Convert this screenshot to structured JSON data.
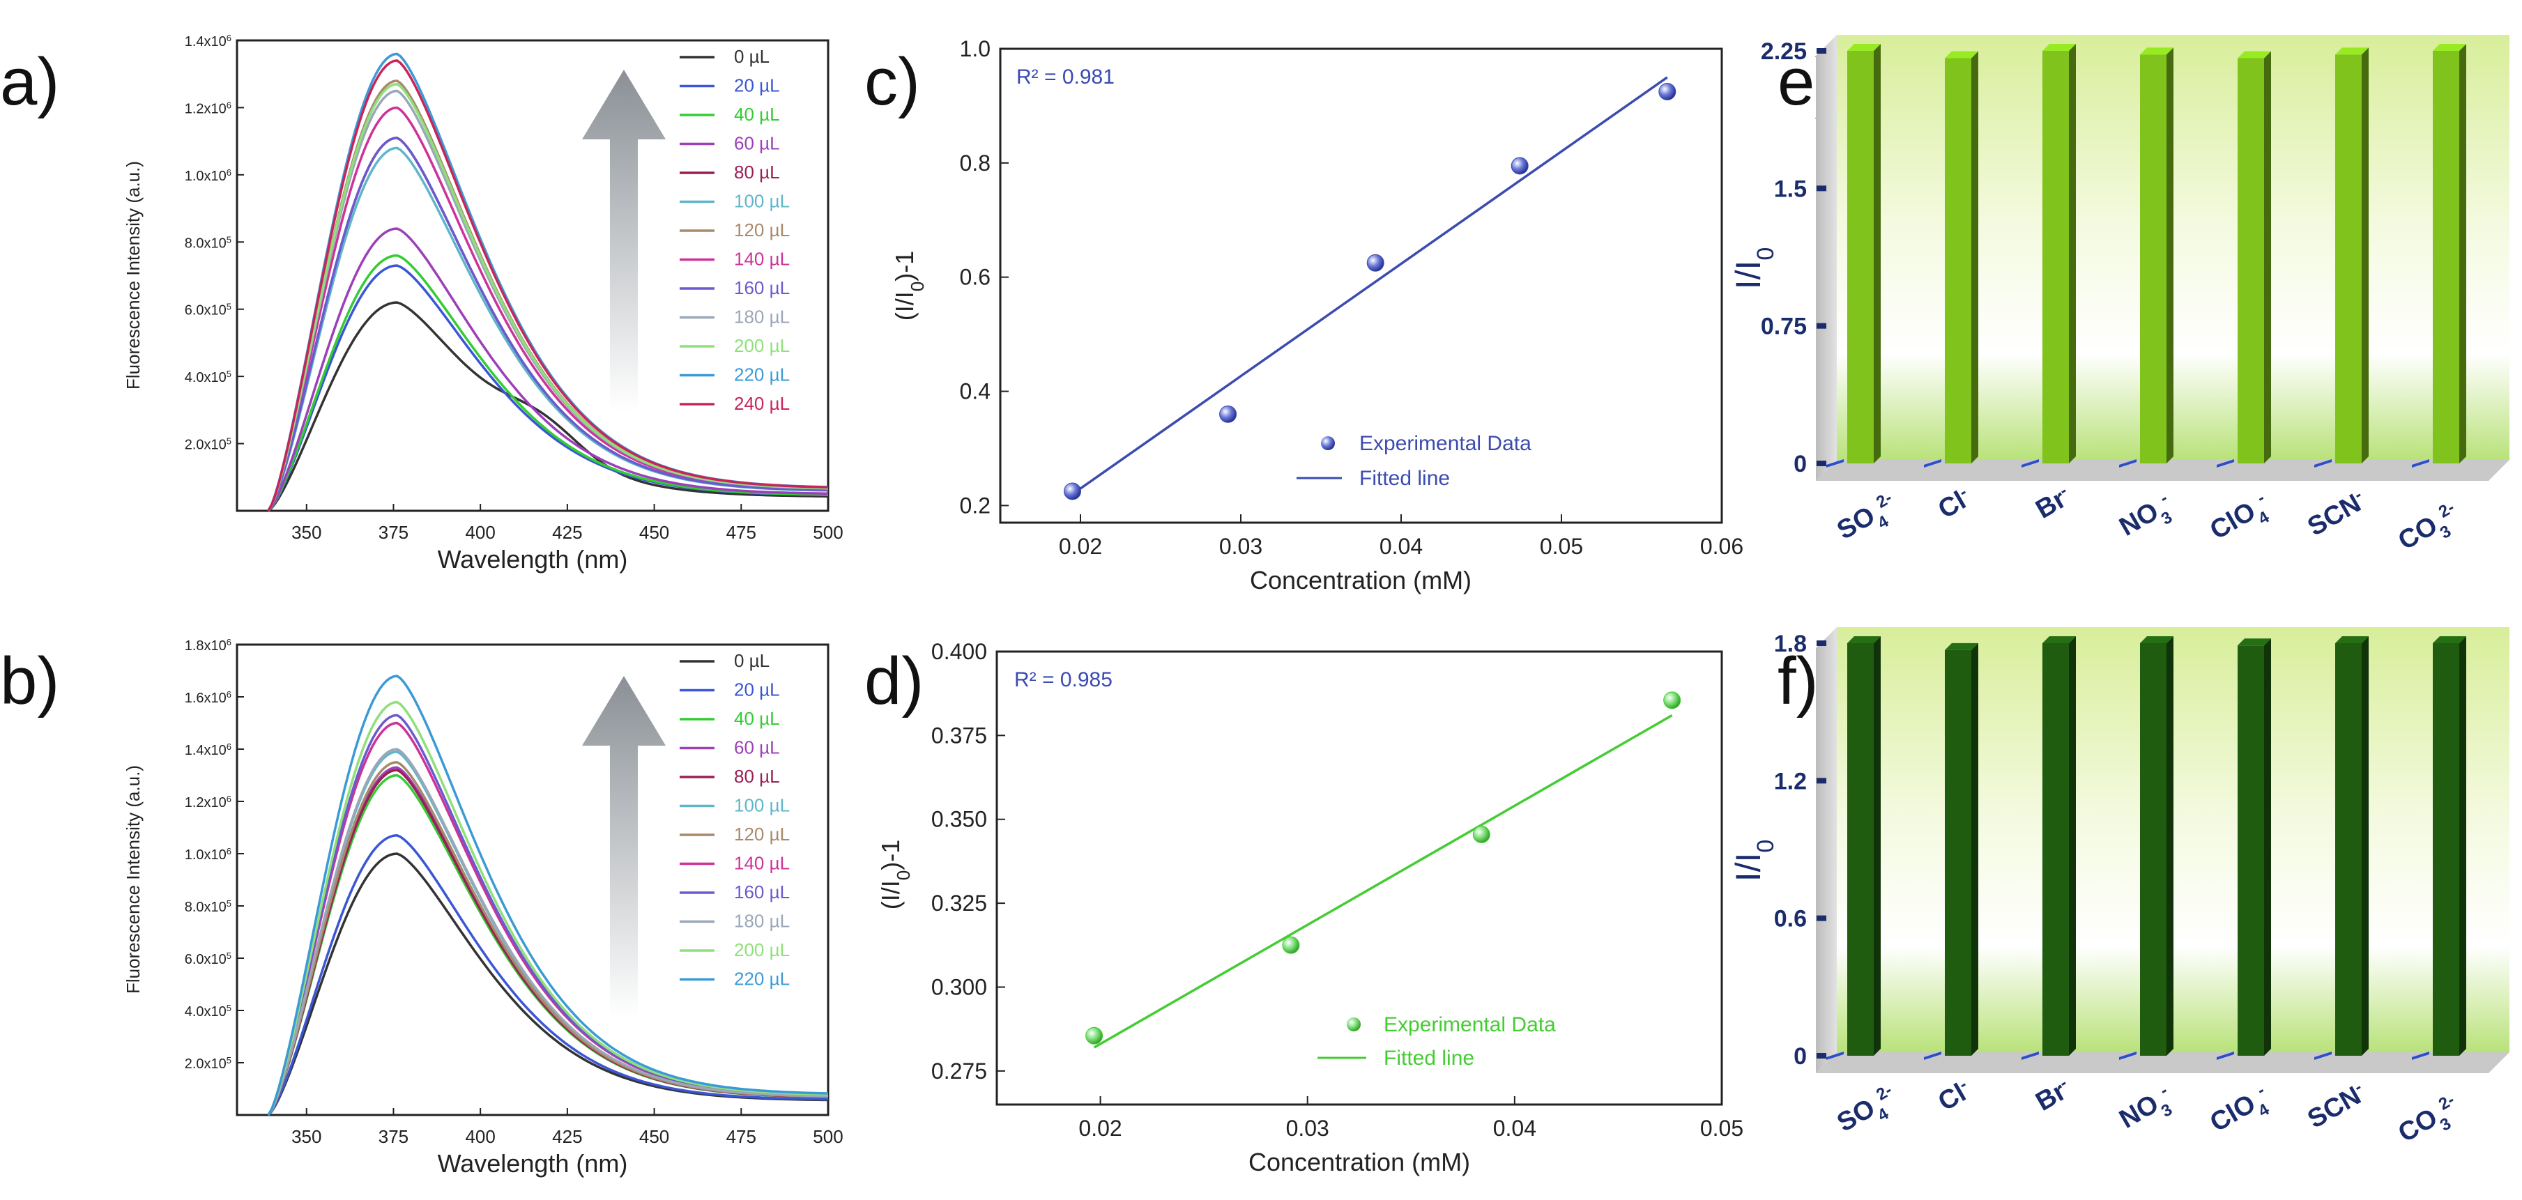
{
  "panels": [
    "a)",
    "b)",
    "c)",
    "d)",
    "e)",
    "f)"
  ],
  "chart_data": [
    {
      "id": "a",
      "type": "line",
      "xlabel": "Wavelength (nm)",
      "ylabel": "Fluorescence Intensity (a.u.)",
      "xlim": [
        330,
        500
      ],
      "ylim": [
        0,
        1400000
      ],
      "xticks": [
        350,
        375,
        400,
        425,
        450,
        475,
        500
      ],
      "yticks": [
        {
          "base": "2.0x10",
          "exp": "5",
          "value": 200000
        },
        {
          "base": "4.0x10",
          "exp": "5",
          "value": 400000
        },
        {
          "base": "6.0x10",
          "exp": "5",
          "value": 600000
        },
        {
          "base": "8.0x10",
          "exp": "5",
          "value": 800000
        },
        {
          "base": "1.0x10",
          "exp": "6",
          "value": 1000000
        },
        {
          "base": "1.2x10",
          "exp": "6",
          "value": 1200000
        },
        {
          "base": "1.4x10",
          "exp": "6",
          "value": 1400000
        }
      ],
      "series": [
        {
          "name": "0 µL",
          "color": "#333333",
          "peak": 620000,
          "shoulder": 1
        },
        {
          "name": "20 µL",
          "color": "#3a56d6",
          "peak": 730000
        },
        {
          "name": "40 µL",
          "color": "#33cc33",
          "peak": 760000
        },
        {
          "name": "60 µL",
          "color": "#9c3fb8",
          "peak": 840000
        },
        {
          "name": "80 µL",
          "color": "#9a1f55",
          "peak": 1110000
        },
        {
          "name": "100 µL",
          "color": "#5fb6c9",
          "peak": 1080000
        },
        {
          "name": "120 µL",
          "color": "#a8896a",
          "peak": 1280000
        },
        {
          "name": "140 µL",
          "color": "#cc3399",
          "peak": 1200000
        },
        {
          "name": "160 µL",
          "color": "#6a5acd",
          "peak": 1110000
        },
        {
          "name": "180 µL",
          "color": "#9aa7b8",
          "peak": 1250000
        },
        {
          "name": "200 µL",
          "color": "#8fe07a",
          "peak": 1270000
        },
        {
          "name": "220 µL",
          "color": "#3b9ad6",
          "peak": 1360000
        },
        {
          "name": "240 µL",
          "color": "#c8245a",
          "peak": 1340000
        }
      ]
    },
    {
      "id": "b",
      "type": "line",
      "xlabel": "Wavelength (nm)",
      "ylabel": "Fluorescence Intensity (a.u.)",
      "xlim": [
        330,
        500
      ],
      "ylim": [
        0,
        1800000
      ],
      "xticks": [
        350,
        375,
        400,
        425,
        450,
        475,
        500
      ],
      "yticks": [
        {
          "base": "2.0x10",
          "exp": "5",
          "value": 200000
        },
        {
          "base": "4.0x10",
          "exp": "5",
          "value": 400000
        },
        {
          "base": "6.0x10",
          "exp": "5",
          "value": 600000
        },
        {
          "base": "8.0x10",
          "exp": "5",
          "value": 800000
        },
        {
          "base": "1.0x10",
          "exp": "6",
          "value": 1000000
        },
        {
          "base": "1.2x10",
          "exp": "6",
          "value": 1200000
        },
        {
          "base": "1.4x10",
          "exp": "6",
          "value": 1400000
        },
        {
          "base": "1.6x10",
          "exp": "6",
          "value": 1600000
        },
        {
          "base": "1.8x10",
          "exp": "6",
          "value": 1800000
        }
      ],
      "series": [
        {
          "name": "0 µL",
          "color": "#333333",
          "peak": 1000000
        },
        {
          "name": "20 µL",
          "color": "#3a56d6",
          "peak": 1070000
        },
        {
          "name": "40 µL",
          "color": "#33cc33",
          "peak": 1300000
        },
        {
          "name": "60 µL",
          "color": "#9c3fb8",
          "peak": 1330000
        },
        {
          "name": "80 µL",
          "color": "#9a1f55",
          "peak": 1320000
        },
        {
          "name": "100 µL",
          "color": "#5fb6c9",
          "peak": 1390000
        },
        {
          "name": "120 µL",
          "color": "#a8896a",
          "peak": 1350000
        },
        {
          "name": "140 µL",
          "color": "#cc3399",
          "peak": 1500000
        },
        {
          "name": "160 µL",
          "color": "#6a5acd",
          "peak": 1530000
        },
        {
          "name": "180 µL",
          "color": "#9aa7b8",
          "peak": 1400000
        },
        {
          "name": "200 µL",
          "color": "#8fe07a",
          "peak": 1580000
        },
        {
          "name": "220 µL",
          "color": "#3b9ad6",
          "peak": 1680000
        }
      ]
    },
    {
      "id": "c",
      "type": "scatter",
      "xlabel": "Concentration (mM)",
      "ylabel": "(I/I0)-1",
      "xlim": [
        0.015,
        0.06
      ],
      "ylim": [
        0.17,
        1.0
      ],
      "xticks": [
        "0.02",
        "0.03",
        "0.04",
        "0.05",
        "0.06"
      ],
      "yticks": [
        "0.2",
        "0.4",
        "0.6",
        "0.8",
        "1.0"
      ],
      "annotation": "R² = 0.981",
      "color": "#3b4bb0",
      "points": [
        {
          "x": 0.0195,
          "y": 0.225
        },
        {
          "x": 0.0292,
          "y": 0.36
        },
        {
          "x": 0.0384,
          "y": 0.625
        },
        {
          "x": 0.0474,
          "y": 0.795
        },
        {
          "x": 0.0566,
          "y": 0.925
        }
      ],
      "fit": [
        {
          "x": 0.0195,
          "y": 0.22
        },
        {
          "x": 0.0566,
          "y": 0.95
        }
      ],
      "legend": {
        "points": "Experimental Data",
        "line": "Fitted line"
      }
    },
    {
      "id": "d",
      "type": "scatter",
      "xlabel": "Concentration (mM)",
      "ylabel": "(I/I0)-1",
      "xlim": [
        0.015,
        0.05
      ],
      "ylim": [
        0.265,
        0.4
      ],
      "xticks": [
        "0.02",
        "0.03",
        "0.04",
        "0.05"
      ],
      "yticks": [
        "0.275",
        "0.300",
        "0.325",
        "0.350",
        "0.375",
        "0.400"
      ],
      "annotation": "R² = 0.985",
      "color": "#44cc33",
      "points": [
        {
          "x": 0.0197,
          "y": 0.2855
        },
        {
          "x": 0.0292,
          "y": 0.3125
        },
        {
          "x": 0.0384,
          "y": 0.3455
        },
        {
          "x": 0.0476,
          "y": 0.3855
        }
      ],
      "fit": [
        {
          "x": 0.0197,
          "y": 0.282
        },
        {
          "x": 0.0476,
          "y": 0.381
        }
      ],
      "legend": {
        "points": "Experimental Data",
        "line": "Fitted line"
      }
    },
    {
      "id": "e",
      "type": "bar",
      "ylabel": "I/I0",
      "ylim": [
        0,
        2.25
      ],
      "yticks": [
        "0",
        "0.75",
        "1.5",
        "2.25"
      ],
      "categories": [
        "SO4 2-",
        "Cl-",
        "Br-",
        "NO3 -",
        "ClO4 -",
        "SCN-",
        "CO3 2-"
      ],
      "values": [
        2.25,
        2.21,
        2.25,
        2.23,
        2.21,
        2.23,
        2.25
      ],
      "bar_color": "#7fc31c"
    },
    {
      "id": "f",
      "type": "bar",
      "ylabel": "I/I0",
      "ylim": [
        0,
        1.8
      ],
      "yticks": [
        "0",
        "0.6",
        "1.2",
        "1.8"
      ],
      "categories": [
        "SO4 2-",
        "Cl-",
        "Br-",
        "NO3 -",
        "ClO4 -",
        "SCN-",
        "CO3 2-"
      ],
      "values": [
        1.8,
        1.77,
        1.8,
        1.8,
        1.79,
        1.8,
        1.8
      ],
      "bar_color": "#1f5c10"
    }
  ]
}
